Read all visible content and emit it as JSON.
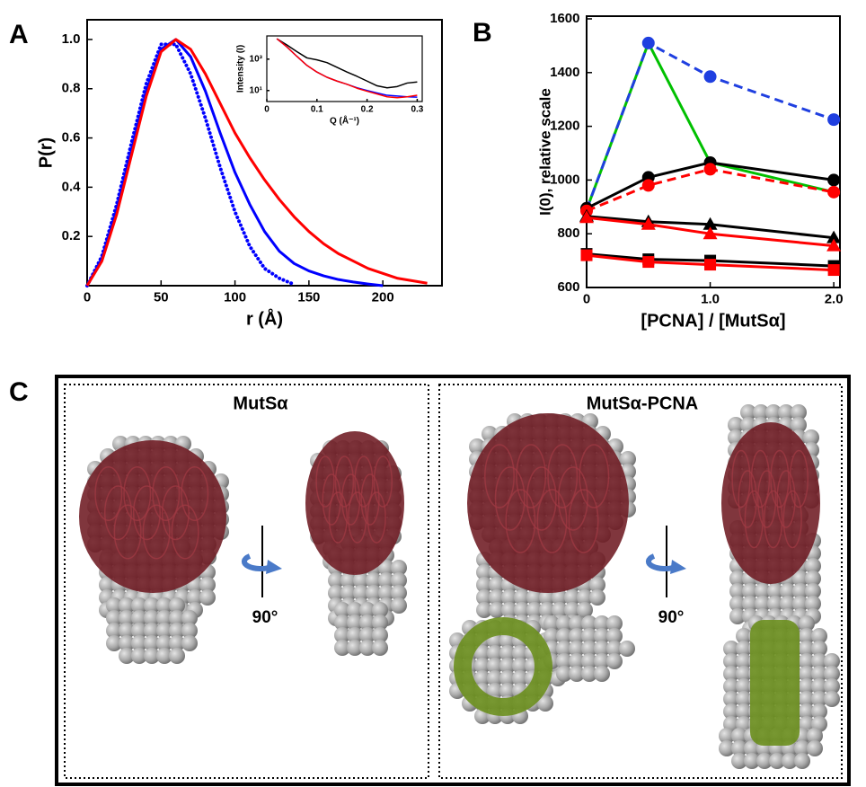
{
  "panel_labels": [
    "A",
    "B",
    "C"
  ],
  "chart_data": [
    {
      "type": "line",
      "xlabel": "r (Å)",
      "ylabel": "P(r)",
      "x": [
        0,
        10,
        20,
        30,
        40,
        50,
        60,
        70,
        80,
        90,
        100,
        110,
        120,
        130,
        140,
        150,
        160,
        170,
        180,
        190,
        200,
        210,
        220,
        230,
        240
      ],
      "xlim": [
        0,
        240
      ],
      "ylim": [
        0,
        1.08
      ],
      "xticks": [
        0,
        50,
        100,
        150,
        200
      ],
      "yticks": [
        0.2,
        0.4,
        0.6,
        0.8,
        {
          "value": 1,
          "label": "1.0"
        }
      ],
      "series": [
        {
          "color": "#0000ff",
          "style": "dotted",
          "values": [
            0,
            0.12,
            0.33,
            0.58,
            0.82,
            0.98,
            0.98,
            0.86,
            0.68,
            0.48,
            0.3,
            0.16,
            0.07,
            0.03,
            0.005,
            null,
            null,
            null,
            null,
            null,
            null,
            null,
            null,
            null,
            null
          ]
        },
        {
          "color": "#0000ff",
          "style": "solid",
          "values": [
            0,
            0.11,
            0.31,
            0.55,
            0.79,
            0.96,
            1,
            0.93,
            0.79,
            0.62,
            0.46,
            0.33,
            0.22,
            0.14,
            0.09,
            0.06,
            0.04,
            0.025,
            0.015,
            0.007,
            0,
            null,
            null,
            null,
            null
          ]
        },
        {
          "color": "#ff0000",
          "style": "solid",
          "values": [
            0,
            0.1,
            0.29,
            0.53,
            0.77,
            0.95,
            1,
            0.96,
            0.86,
            0.74,
            0.62,
            0.52,
            0.43,
            0.35,
            0.28,
            0.22,
            0.17,
            0.13,
            0.1,
            0.07,
            0.05,
            0.03,
            0.02,
            0.01,
            null
          ]
        }
      ]
    },
    {
      "type": "line",
      "xlabel": "Q (Å⁻¹)",
      "ylabel": "Intensity (I)",
      "log_y": true,
      "x": [
        0.02,
        0.04,
        0.06,
        0.08,
        0.1,
        0.12,
        0.14,
        0.16,
        0.18,
        0.2,
        0.22,
        0.24,
        0.26,
        0.28,
        0.3
      ],
      "xlim": [
        0,
        0.31
      ],
      "ylim": [
        2,
        30000
      ],
      "xticks": [
        0,
        0.1,
        0.2,
        0.3
      ],
      "yticks": [
        {
          "value": 10,
          "label": "10¹"
        },
        {
          "value": 1000,
          "label": "10³"
        }
      ],
      "series": [
        {
          "color": "#000000",
          "style": "solid",
          "values": [
            20000,
            8000,
            3000,
            1200,
            900,
            600,
            300,
            150,
            80,
            40,
            20,
            15,
            18,
            30,
            35
          ]
        },
        {
          "color": "#0000ff",
          "style": "solid",
          "values": [
            20000,
            6000,
            1500,
            400,
            150,
            70,
            40,
            25,
            15,
            10,
            7,
            5,
            4.5,
            4,
            3.8
          ]
        },
        {
          "color": "#ff0000",
          "style": "solid",
          "values": [
            20000,
            6000,
            1500,
            400,
            150,
            70,
            40,
            25,
            14,
            9,
            6,
            4,
            3.5,
            4,
            5
          ]
        }
      ]
    },
    {
      "type": "line",
      "xlabel": "[PCNA] / [MutSα]",
      "ylabel": "I(0), relative scale",
      "x": [
        0,
        0.5,
        1,
        2
      ],
      "xlim": [
        0,
        2.05
      ],
      "ylim": [
        600,
        1610
      ],
      "xticks": [
        0,
        {
          "value": 1,
          "label": "1.0"
        },
        {
          "value": 2,
          "label": "2.0"
        }
      ],
      "yticks": [
        600,
        800,
        1000,
        1200,
        1400,
        1600
      ],
      "series": [
        {
          "color": "#00c000",
          "style": "solid",
          "marker": null,
          "values": [
            890,
            1510,
            1065,
            955
          ]
        },
        {
          "color": "#1f3fe0",
          "style": "dashed",
          "marker": "circle",
          "values": [
            890,
            1510,
            1385,
            1225
          ]
        },
        {
          "color": "#000000",
          "style": "solid",
          "marker": "circle",
          "values": [
            895,
            1010,
            1065,
            1000
          ]
        },
        {
          "color": "#ff0000",
          "style": "dashed",
          "marker": "circle",
          "values": [
            885,
            980,
            1040,
            955
          ]
        },
        {
          "color": "#000000",
          "style": "solid",
          "marker": "triangle",
          "values": [
            865,
            845,
            835,
            785
          ]
        },
        {
          "color": "#ff0000",
          "style": "solid",
          "marker": "triangle",
          "values": [
            860,
            835,
            800,
            755
          ]
        },
        {
          "color": "#000000",
          "style": "solid",
          "marker": "square",
          "values": [
            725,
            705,
            700,
            680
          ]
        },
        {
          "color": "#ff0000",
          "style": "solid",
          "marker": "square",
          "values": [
            720,
            695,
            685,
            665
          ]
        }
      ]
    }
  ],
  "panel_c": {
    "titles": [
      "MutSα",
      "MutSα-PCNA"
    ],
    "rotation_labels": [
      "90°",
      "90°"
    ]
  }
}
